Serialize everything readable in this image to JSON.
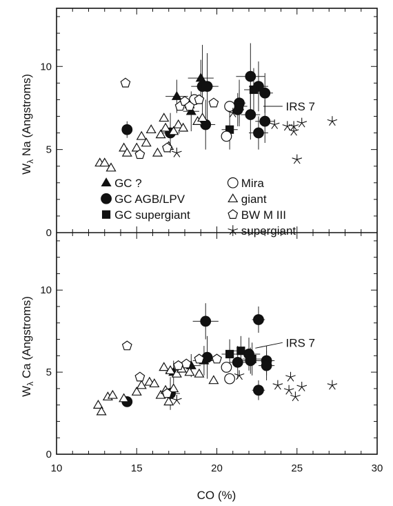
{
  "x_axis": {
    "label": "CO (%)",
    "ticks": [
      "10",
      "15",
      "20",
      "25",
      "30"
    ]
  },
  "chart_data": [
    {
      "type": "scatter",
      "panel": "top",
      "ylabel_main": "W",
      "ylabel_sub": "λ",
      "ylabel_rest": " Na (Angstroms)",
      "xlim": [
        10,
        30
      ],
      "ylim": [
        0,
        13.5
      ],
      "yticks": [
        "0",
        "5",
        "10"
      ],
      "annotation": "IRS 7",
      "legend": [
        {
          "marker": "filled-triangle",
          "label": "GC ?"
        },
        {
          "marker": "filled-circle",
          "label": "GC AGB/LPV"
        },
        {
          "marker": "filled-square",
          "label": "GC supergiant"
        },
        {
          "marker": "open-circle",
          "label": "Mira"
        },
        {
          "marker": "open-triangle",
          "label": "giant"
        },
        {
          "marker": "open-pentagon",
          "label": "BW M III"
        },
        {
          "marker": "star",
          "label": "supergiant"
        }
      ],
      "series": [
        {
          "name": "GC ?",
          "marker": "filled-triangle",
          "points": [
            {
              "x": 17.5,
              "y": 8.2,
              "xerr": 0.7,
              "yerr": 1.0
            },
            {
              "x": 18.4,
              "y": 7.3,
              "xerr": 0.5,
              "yerr": 1.2
            },
            {
              "x": 19.0,
              "y": 9.3,
              "xerr": 0.8,
              "yerr": 1.1
            }
          ]
        },
        {
          "name": "GC AGB/LPV",
          "marker": "filled-circle",
          "points": [
            {
              "x": 14.4,
              "y": 6.2,
              "xerr": 0,
              "yerr": 0.5
            },
            {
              "x": 17.1,
              "y": 6.0,
              "xerr": 0.6,
              "yerr": 1.2
            },
            {
              "x": 19.1,
              "y": 8.8,
              "xerr": 0.7,
              "yerr": 2.5
            },
            {
              "x": 19.4,
              "y": 8.8,
              "xerr": 0.7,
              "yerr": 2.0
            },
            {
              "x": 19.3,
              "y": 6.5,
              "xerr": 0.6,
              "yerr": 1.5
            },
            {
              "x": 21.4,
              "y": 7.8,
              "xerr": 0.4,
              "yerr": 1.4
            },
            {
              "x": 21.3,
              "y": 7.4,
              "xerr": 0.4,
              "yerr": 1.0
            },
            {
              "x": 22.1,
              "y": 9.4,
              "xerr": 0.9,
              "yerr": 2.0
            },
            {
              "x": 22.1,
              "y": 7.1,
              "xerr": 0.6,
              "yerr": 1.5
            },
            {
              "x": 22.6,
              "y": 8.8,
              "xerr": 0.6,
              "yerr": 1.5
            },
            {
              "x": 23.0,
              "y": 8.4,
              "xerr": 0.5,
              "yerr": 1.2
            },
            {
              "x": 22.6,
              "y": 6.0,
              "xerr": 0.6,
              "yerr": 1.0
            },
            {
              "x": 23.0,
              "y": 6.7,
              "xerr": 0.6,
              "yerr": 1.3
            }
          ]
        },
        {
          "name": "GC supergiant",
          "marker": "filled-square",
          "points": [
            {
              "x": 20.8,
              "y": 6.2,
              "xerr": 0.5,
              "yerr": 1.2
            },
            {
              "x": 21.4,
              "y": 7.6,
              "xerr": 0.5,
              "yerr": 1.0
            },
            {
              "x": 22.3,
              "y": 8.6,
              "xerr": 0.6,
              "yerr": 1.3
            }
          ]
        },
        {
          "name": "Mira",
          "marker": "open-circle",
          "points": [
            {
              "x": 18.6,
              "y": 8.0
            },
            {
              "x": 20.6,
              "y": 5.8
            },
            {
              "x": 20.8,
              "y": 7.6
            }
          ]
        },
        {
          "name": "giant",
          "marker": "open-triangle",
          "points": [
            {
              "x": 12.7,
              "y": 4.2
            },
            {
              "x": 13.0,
              "y": 4.2
            },
            {
              "x": 13.4,
              "y": 3.9
            },
            {
              "x": 14.2,
              "y": 5.1
            },
            {
              "x": 14.4,
              "y": 4.8
            },
            {
              "x": 15.0,
              "y": 5.1
            },
            {
              "x": 15.3,
              "y": 5.8
            },
            {
              "x": 15.6,
              "y": 5.4
            },
            {
              "x": 15.9,
              "y": 6.2
            },
            {
              "x": 16.3,
              "y": 4.8
            },
            {
              "x": 16.5,
              "y": 5.9
            },
            {
              "x": 16.7,
              "y": 6.9
            },
            {
              "x": 16.8,
              "y": 6.3
            },
            {
              "x": 17.0,
              "y": 5.2
            },
            {
              "x": 17.3,
              "y": 6.1
            },
            {
              "x": 17.6,
              "y": 6.5
            },
            {
              "x": 17.9,
              "y": 6.3
            },
            {
              "x": 18.3,
              "y": 7.7
            },
            {
              "x": 18.8,
              "y": 6.7
            },
            {
              "x": 19.1,
              "y": 6.9
            }
          ]
        },
        {
          "name": "BW M III",
          "marker": "open-pentagon",
          "points": [
            {
              "x": 14.3,
              "y": 9.0
            },
            {
              "x": 15.2,
              "y": 4.7
            },
            {
              "x": 16.9,
              "y": 5.1
            },
            {
              "x": 17.7,
              "y": 7.6
            },
            {
              "x": 18.0,
              "y": 7.9
            },
            {
              "x": 18.3,
              "y": 7.6
            },
            {
              "x": 18.9,
              "y": 8.0
            },
            {
              "x": 19.8,
              "y": 7.8
            }
          ]
        },
        {
          "name": "supergiant",
          "marker": "star",
          "points": [
            {
              "x": 17.5,
              "y": 4.8
            },
            {
              "x": 21.0,
              "y": 7.2
            },
            {
              "x": 23.6,
              "y": 6.5
            },
            {
              "x": 24.4,
              "y": 6.4
            },
            {
              "x": 24.8,
              "y": 6.4
            },
            {
              "x": 24.8,
              "y": 6.1
            },
            {
              "x": 25.3,
              "y": 6.6
            },
            {
              "x": 25.0,
              "y": 4.4
            },
            {
              "x": 27.2,
              "y": 6.7
            }
          ]
        }
      ]
    },
    {
      "type": "scatter",
      "panel": "bottom",
      "ylabel_main": "W",
      "ylabel_sub": "λ",
      "ylabel_rest": " Ca (Angstroms)",
      "xlim": [
        10,
        30
      ],
      "ylim": [
        0,
        13.5
      ],
      "yticks": [
        "0",
        "5",
        "10"
      ],
      "annotation": "IRS 7",
      "series": [
        {
          "name": "GC ?",
          "marker": "filled-triangle",
          "points": [
            {
              "x": 17.3,
              "y": 5.0,
              "xerr": 0.5,
              "yerr": 0.7
            },
            {
              "x": 18.4,
              "y": 5.4,
              "xerr": 0.6,
              "yerr": 0.7
            },
            {
              "x": 19.2,
              "y": 5.7,
              "xerr": 0.7,
              "yerr": 0.9
            }
          ]
        },
        {
          "name": "GC AGB/LPV",
          "marker": "filled-circle",
          "points": [
            {
              "x": 14.4,
              "y": 3.2,
              "xerr": 0,
              "yerr": 0
            },
            {
              "x": 17.1,
              "y": 3.7,
              "xerr": 0.6,
              "yerr": 1.0
            },
            {
              "x": 19.3,
              "y": 8.1,
              "xerr": 0.8,
              "yerr": 1.1
            },
            {
              "x": 19.4,
              "y": 5.9,
              "xerr": 0.7,
              "yerr": 1.3
            },
            {
              "x": 21.3,
              "y": 5.6,
              "xerr": 0.5,
              "yerr": 1.0
            },
            {
              "x": 22.0,
              "y": 6.1,
              "xerr": 0.7,
              "yerr": 1.0
            },
            {
              "x": 22.1,
              "y": 5.7,
              "xerr": 0.6,
              "yerr": 0.8
            },
            {
              "x": 22.6,
              "y": 8.2,
              "xerr": 0.4,
              "yerr": 0.8
            },
            {
              "x": 22.6,
              "y": 3.9,
              "xerr": 0.4,
              "yerr": 0.6
            },
            {
              "x": 23.1,
              "y": 5.7,
              "xerr": 0.5,
              "yerr": 0.9
            },
            {
              "x": 23.1,
              "y": 5.4,
              "xerr": 0.5,
              "yerr": 0.9
            }
          ]
        },
        {
          "name": "GC supergiant",
          "marker": "filled-square",
          "points": [
            {
              "x": 20.8,
              "y": 6.1,
              "xerr": 0.5,
              "yerr": 0.9
            },
            {
              "x": 21.5,
              "y": 6.3,
              "xerr": 0.5,
              "yerr": 0.9
            },
            {
              "x": 22.2,
              "y": 5.8,
              "xerr": 0.6,
              "yerr": 1.0
            }
          ]
        },
        {
          "name": "Mira",
          "marker": "open-circle",
          "points": [
            {
              "x": 20.6,
              "y": 5.3
            },
            {
              "x": 20.8,
              "y": 4.6
            }
          ]
        },
        {
          "name": "giant",
          "marker": "open-triangle",
          "points": [
            {
              "x": 12.6,
              "y": 3.0
            },
            {
              "x": 12.8,
              "y": 2.6
            },
            {
              "x": 13.2,
              "y": 3.5
            },
            {
              "x": 13.5,
              "y": 3.6
            },
            {
              "x": 14.2,
              "y": 3.4
            },
            {
              "x": 15.0,
              "y": 3.8
            },
            {
              "x": 15.3,
              "y": 4.2
            },
            {
              "x": 15.8,
              "y": 4.4
            },
            {
              "x": 16.1,
              "y": 4.3
            },
            {
              "x": 16.5,
              "y": 3.6
            },
            {
              "x": 16.7,
              "y": 5.3
            },
            {
              "x": 16.8,
              "y": 3.9
            },
            {
              "x": 17.0,
              "y": 3.2
            },
            {
              "x": 17.1,
              "y": 5.1
            },
            {
              "x": 17.3,
              "y": 4.0
            },
            {
              "x": 17.5,
              "y": 4.9
            },
            {
              "x": 17.8,
              "y": 5.2
            },
            {
              "x": 18.3,
              "y": 5.0
            },
            {
              "x": 18.9,
              "y": 4.9
            },
            {
              "x": 19.8,
              "y": 4.5
            }
          ]
        },
        {
          "name": "BW M III",
          "marker": "open-pentagon",
          "points": [
            {
              "x": 14.4,
              "y": 6.6
            },
            {
              "x": 15.2,
              "y": 4.7
            },
            {
              "x": 16.9,
              "y": 3.7
            },
            {
              "x": 17.6,
              "y": 5.4
            },
            {
              "x": 18.1,
              "y": 5.5
            },
            {
              "x": 18.9,
              "y": 5.8
            },
            {
              "x": 20.0,
              "y": 5.8
            }
          ]
        },
        {
          "name": "supergiant",
          "marker": "star",
          "points": [
            {
              "x": 17.5,
              "y": 3.3
            },
            {
              "x": 21.4,
              "y": 4.8
            },
            {
              "x": 23.8,
              "y": 4.2
            },
            {
              "x": 24.6,
              "y": 4.7
            },
            {
              "x": 24.9,
              "y": 3.5
            },
            {
              "x": 25.3,
              "y": 4.1
            },
            {
              "x": 24.5,
              "y": 3.9
            },
            {
              "x": 27.2,
              "y": 4.2
            }
          ]
        }
      ]
    }
  ]
}
